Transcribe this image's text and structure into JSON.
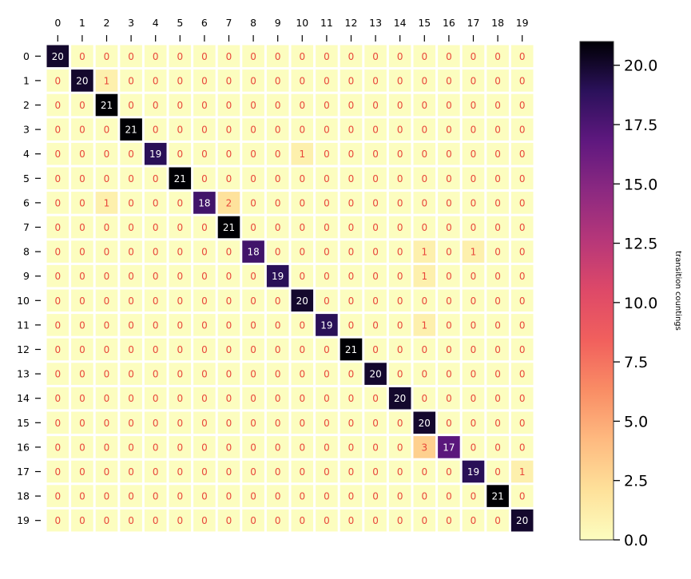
{
  "chart_data": {
    "type": "heatmap",
    "x_tick_labels": [
      "0",
      "1",
      "2",
      "3",
      "4",
      "5",
      "6",
      "7",
      "8",
      "9",
      "10",
      "11",
      "12",
      "13",
      "14",
      "15",
      "16",
      "17",
      "18",
      "19"
    ],
    "y_tick_labels": [
      "0",
      "1",
      "2",
      "3",
      "4",
      "5",
      "6",
      "7",
      "8",
      "9",
      "10",
      "11",
      "12",
      "13",
      "14",
      "15",
      "16",
      "17",
      "18",
      "19"
    ],
    "matrix": [
      [
        20,
        0,
        0,
        0,
        0,
        0,
        0,
        0,
        0,
        0,
        0,
        0,
        0,
        0,
        0,
        0,
        0,
        0,
        0,
        0
      ],
      [
        0,
        20,
        1,
        0,
        0,
        0,
        0,
        0,
        0,
        0,
        0,
        0,
        0,
        0,
        0,
        0,
        0,
        0,
        0,
        0
      ],
      [
        0,
        0,
        21,
        0,
        0,
        0,
        0,
        0,
        0,
        0,
        0,
        0,
        0,
        0,
        0,
        0,
        0,
        0,
        0,
        0
      ],
      [
        0,
        0,
        0,
        21,
        0,
        0,
        0,
        0,
        0,
        0,
        0,
        0,
        0,
        0,
        0,
        0,
        0,
        0,
        0,
        0
      ],
      [
        0,
        0,
        0,
        0,
        19,
        0,
        0,
        0,
        0,
        0,
        1,
        0,
        0,
        0,
        0,
        0,
        0,
        0,
        0,
        0
      ],
      [
        0,
        0,
        0,
        0,
        0,
        21,
        0,
        0,
        0,
        0,
        0,
        0,
        0,
        0,
        0,
        0,
        0,
        0,
        0,
        0
      ],
      [
        0,
        0,
        1,
        0,
        0,
        0,
        18,
        2,
        0,
        0,
        0,
        0,
        0,
        0,
        0,
        0,
        0,
        0,
        0,
        0
      ],
      [
        0,
        0,
        0,
        0,
        0,
        0,
        0,
        21,
        0,
        0,
        0,
        0,
        0,
        0,
        0,
        0,
        0,
        0,
        0,
        0
      ],
      [
        0,
        0,
        0,
        0,
        0,
        0,
        0,
        0,
        18,
        0,
        0,
        0,
        0,
        0,
        0,
        1,
        0,
        1,
        0,
        0
      ],
      [
        0,
        0,
        0,
        0,
        0,
        0,
        0,
        0,
        0,
        19,
        0,
        0,
        0,
        0,
        0,
        1,
        0,
        0,
        0,
        0
      ],
      [
        0,
        0,
        0,
        0,
        0,
        0,
        0,
        0,
        0,
        0,
        20,
        0,
        0,
        0,
        0,
        0,
        0,
        0,
        0,
        0
      ],
      [
        0,
        0,
        0,
        0,
        0,
        0,
        0,
        0,
        0,
        0,
        0,
        19,
        0,
        0,
        0,
        1,
        0,
        0,
        0,
        0
      ],
      [
        0,
        0,
        0,
        0,
        0,
        0,
        0,
        0,
        0,
        0,
        0,
        0,
        21,
        0,
        0,
        0,
        0,
        0,
        0,
        0
      ],
      [
        0,
        0,
        0,
        0,
        0,
        0,
        0,
        0,
        0,
        0,
        0,
        0,
        0,
        20,
        0,
        0,
        0,
        0,
        0,
        0
      ],
      [
        0,
        0,
        0,
        0,
        0,
        0,
        0,
        0,
        0,
        0,
        0,
        0,
        0,
        0,
        20,
        0,
        0,
        0,
        0,
        0
      ],
      [
        0,
        0,
        0,
        0,
        0,
        0,
        0,
        0,
        0,
        0,
        0,
        0,
        0,
        0,
        0,
        20,
        0,
        0,
        0,
        0
      ],
      [
        0,
        0,
        0,
        0,
        0,
        0,
        0,
        0,
        0,
        0,
        0,
        0,
        0,
        0,
        0,
        3,
        17,
        0,
        0,
        0
      ],
      [
        0,
        0,
        0,
        0,
        0,
        0,
        0,
        0,
        0,
        0,
        0,
        0,
        0,
        0,
        0,
        0,
        0,
        19,
        0,
        1
      ],
      [
        0,
        0,
        0,
        0,
        0,
        0,
        0,
        0,
        0,
        0,
        0,
        0,
        0,
        0,
        0,
        0,
        0,
        0,
        21,
        0
      ],
      [
        0,
        0,
        0,
        0,
        0,
        0,
        0,
        0,
        0,
        0,
        0,
        0,
        0,
        0,
        0,
        0,
        0,
        0,
        0,
        20
      ]
    ],
    "x_axis_position": "top",
    "value_range": [
      0,
      21
    ],
    "colormap": "magma_r",
    "colorbar": {
      "label": "transition countings",
      "ticks": [
        "0.0",
        "2.5",
        "5.0",
        "7.5",
        "10.0",
        "12.5",
        "15.0",
        "17.5",
        "20.0"
      ],
      "tick_values": [
        0,
        2.5,
        5,
        7.5,
        10,
        12.5,
        15,
        17.5,
        20
      ],
      "position": "right"
    },
    "annotations": "cell values",
    "grid": false
  }
}
